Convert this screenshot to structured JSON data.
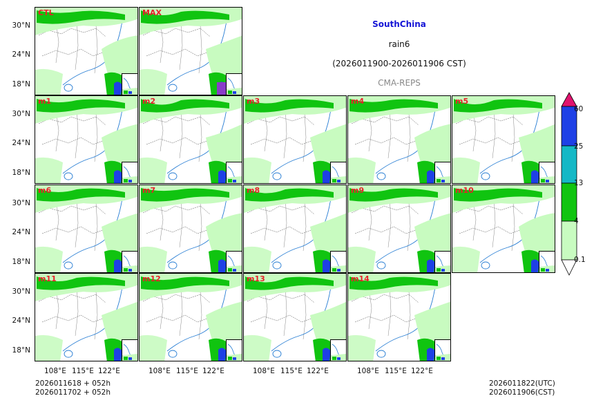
{
  "header": {
    "region": "SouthChina",
    "variable": "rain6",
    "period": "(2026011900-2026011906 CST)",
    "system": "CMA-REPS"
  },
  "panels": [
    "CTL",
    "MAX",
    "m1",
    "m2",
    "m3",
    "m4",
    "m5",
    "m6",
    "m7",
    "m8",
    "m9",
    "m10",
    "m11",
    "m12",
    "m13",
    "m14"
  ],
  "axes": {
    "lat_ticks": [
      "30°N",
      "24°N",
      "18°N"
    ],
    "lon_ticks": [
      "108°E",
      "115°E",
      "122°E"
    ]
  },
  "colorbar": {
    "levels": [
      "60",
      "25",
      "13",
      "4",
      "0.1"
    ],
    "colors": [
      "#e0136e",
      "#1e40e6",
      "#14b8c6",
      "#10c410",
      "#c8fbc0"
    ]
  },
  "footer": {
    "init_line1": "2026011618  +  052h",
    "init_line2": "2026011702  +  052h",
    "valid_utc": "2026011822(UTC)",
    "valid_cst": "2026011906(CST)"
  }
}
